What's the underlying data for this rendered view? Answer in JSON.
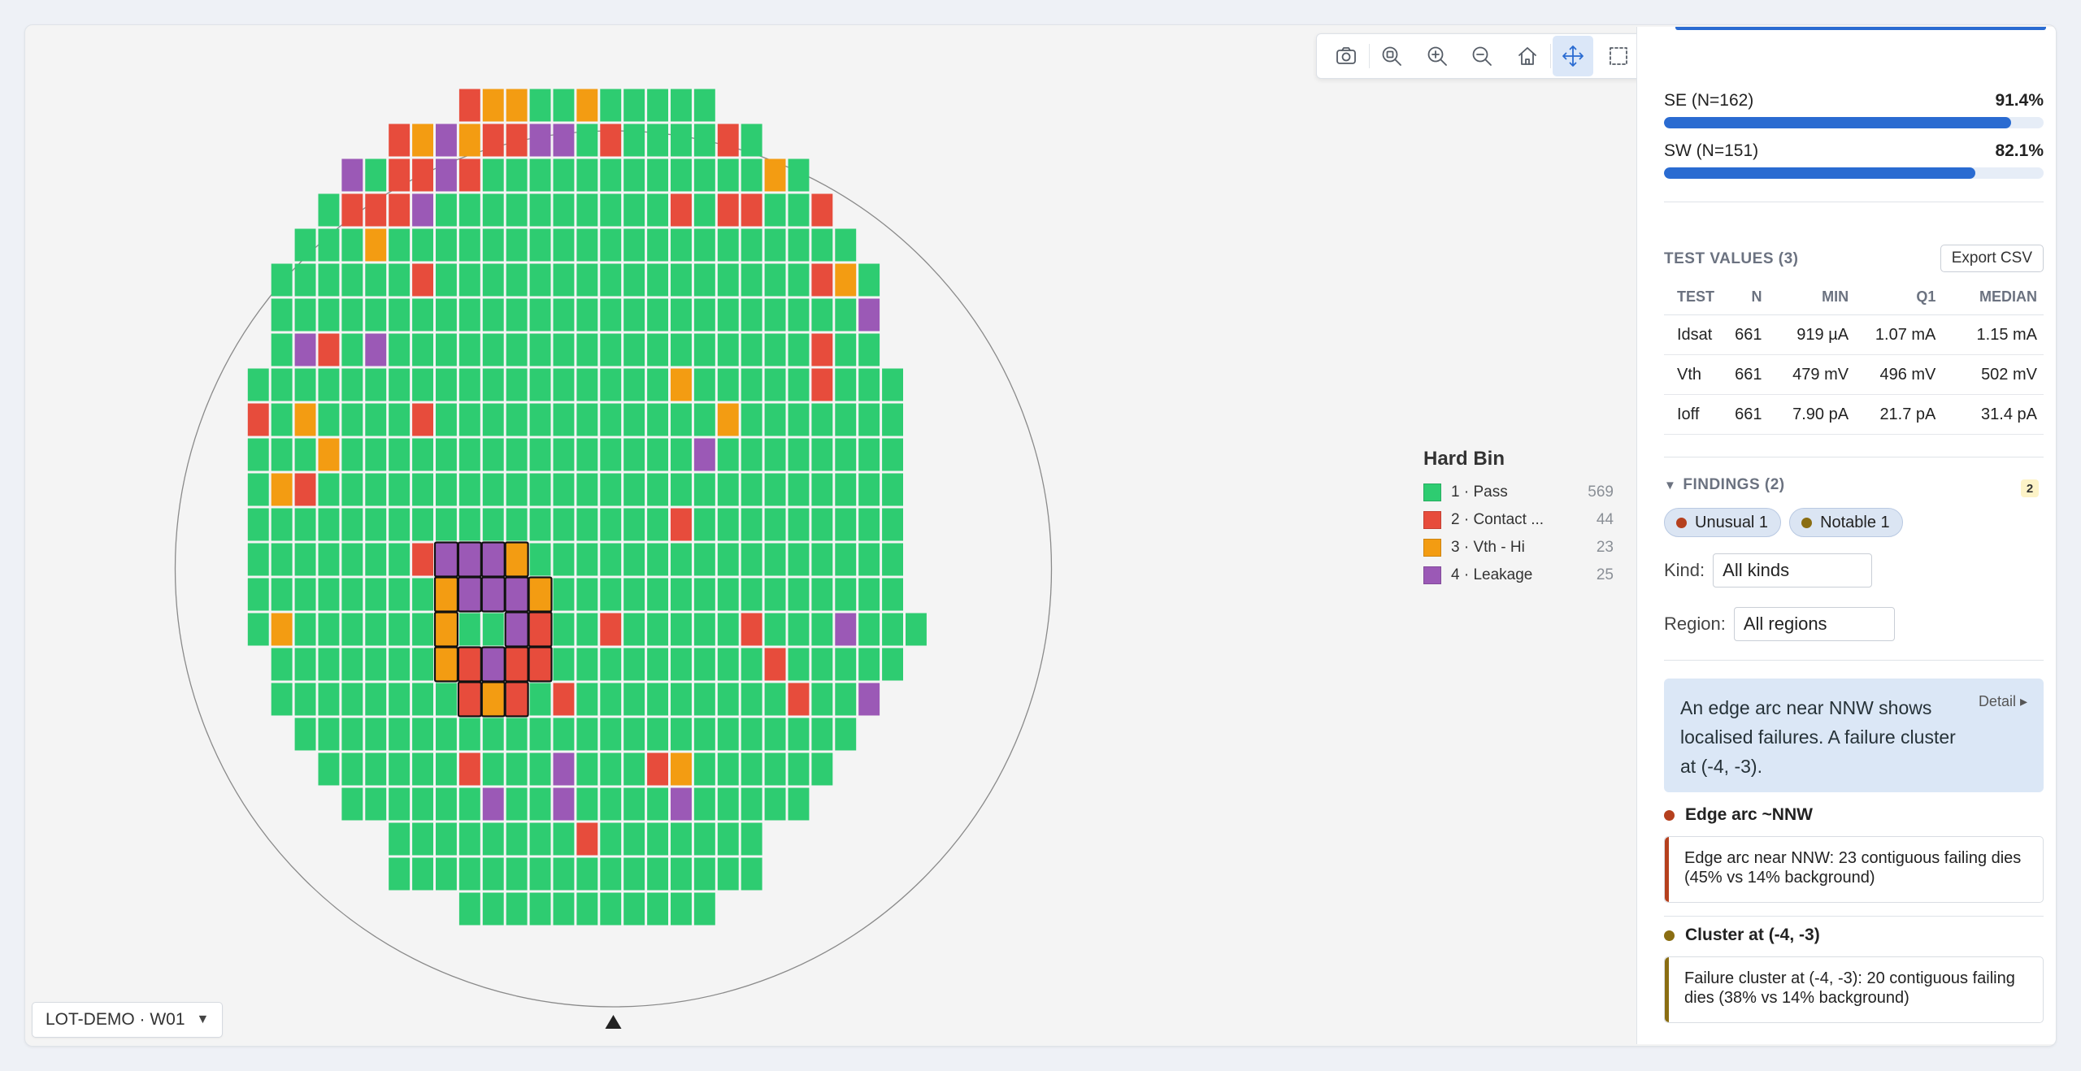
{
  "toolbar": {
    "items": [
      {
        "name": "camera-icon",
        "active": false
      },
      {
        "name": "zoom-fit-icon",
        "active": false
      },
      {
        "name": "zoom-in-icon",
        "active": false
      },
      {
        "name": "zoom-out-icon",
        "active": false
      },
      {
        "name": "home-icon",
        "active": false
      },
      {
        "name": "pan-move-icon",
        "active": true
      },
      {
        "name": "box-select-icon",
        "active": false
      },
      {
        "name": "layers-icon",
        "active": false
      },
      {
        "name": "brush-icon",
        "active": false
      },
      {
        "name": "eye-icon",
        "active": false
      },
      {
        "name": "list-view-icon",
        "active": false
      },
      {
        "name": "compass-icon",
        "active": false
      },
      {
        "name": "clipboard-icon",
        "active": true
      },
      {
        "name": "expand-icon",
        "active": false
      },
      {
        "name": "help-icon",
        "active": false
      }
    ]
  },
  "wafer": {
    "legend": {
      "title": "Hard Bin",
      "items": [
        {
          "label": "1 · Pass",
          "count": "569",
          "color": "#2ecc71"
        },
        {
          "label": "2 · Contact ...",
          "count": "44",
          "color": "#e74c3c"
        },
        {
          "label": "3 · Vth - Hi",
          "count": "23",
          "color": "#f39c12"
        },
        {
          "label": "4 · Leakage",
          "count": "25",
          "color": "#9b59b6"
        }
      ]
    },
    "grid": {
      "cols": 35,
      "rows": 24,
      "row_starts": [
        11,
        8,
        6,
        5,
        4,
        3,
        3,
        3,
        2,
        2,
        2,
        2,
        2,
        2,
        2,
        2,
        3,
        3,
        4,
        5,
        6,
        8,
        8,
        11
      ],
      "row_ends": [
        21,
        23,
        25,
        26,
        27,
        28,
        28,
        28,
        29,
        29,
        29,
        29,
        29,
        29,
        29,
        30,
        29,
        28,
        27,
        26,
        25,
        23,
        23,
        21
      ],
      "defects": [
        [
          0,
          11,
          2
        ],
        [
          0,
          12,
          3
        ],
        [
          0,
          13,
          3
        ],
        [
          0,
          16,
          3
        ],
        [
          1,
          8,
          2
        ],
        [
          1,
          9,
          3
        ],
        [
          1,
          10,
          4
        ],
        [
          1,
          11,
          3
        ],
        [
          1,
          12,
          2
        ],
        [
          1,
          13,
          2
        ],
        [
          1,
          14,
          4
        ],
        [
          1,
          15,
          4
        ],
        [
          1,
          17,
          2
        ],
        [
          1,
          22,
          2
        ],
        [
          1,
          24,
          2
        ],
        [
          2,
          6,
          4
        ],
        [
          2,
          8,
          2
        ],
        [
          2,
          9,
          2
        ],
        [
          2,
          10,
          4
        ],
        [
          2,
          11,
          2
        ],
        [
          2,
          24,
          3
        ],
        [
          3,
          6,
          2
        ],
        [
          3,
          7,
          2
        ],
        [
          3,
          8,
          2
        ],
        [
          3,
          9,
          4
        ],
        [
          3,
          20,
          2
        ],
        [
          3,
          22,
          2
        ],
        [
          3,
          23,
          2
        ],
        [
          3,
          26,
          2
        ],
        [
          4,
          7,
          3
        ],
        [
          5,
          9,
          2
        ],
        [
          5,
          26,
          2
        ],
        [
          5,
          27,
          3
        ],
        [
          6,
          28,
          4
        ],
        [
          7,
          4,
          4
        ],
        [
          7,
          5,
          2
        ],
        [
          7,
          7,
          4
        ],
        [
          7,
          26,
          2
        ],
        [
          7,
          29,
          2
        ],
        [
          8,
          20,
          3
        ],
        [
          8,
          26,
          2
        ],
        [
          9,
          2,
          2
        ],
        [
          9,
          4,
          3
        ],
        [
          9,
          9,
          2
        ],
        [
          9,
          22,
          3
        ],
        [
          9,
          31,
          3
        ],
        [
          10,
          5,
          3
        ],
        [
          10,
          21,
          4
        ],
        [
          11,
          3,
          3
        ],
        [
          11,
          4,
          2
        ],
        [
          11,
          32,
          3
        ],
        [
          12,
          20,
          2
        ],
        [
          13,
          9,
          2
        ],
        [
          13,
          30,
          2
        ],
        [
          13,
          32,
          2
        ],
        [
          14,
          31,
          2
        ],
        [
          14,
          33,
          2
        ],
        [
          15,
          3,
          3
        ],
        [
          15,
          17,
          2
        ],
        [
          15,
          23,
          2
        ],
        [
          15,
          27,
          4
        ],
        [
          16,
          24,
          2
        ],
        [
          17,
          15,
          2
        ],
        [
          17,
          25,
          2
        ],
        [
          17,
          28,
          4
        ],
        [
          18,
          28,
          4
        ],
        [
          19,
          11,
          2
        ],
        [
          19,
          15,
          4
        ],
        [
          19,
          19,
          2
        ],
        [
          19,
          20,
          3
        ],
        [
          20,
          12,
          4
        ],
        [
          20,
          15,
          4
        ],
        [
          20,
          20,
          4
        ],
        [
          21,
          16,
          2
        ]
      ],
      "cluster": [
        [
          13,
          10,
          4
        ],
        [
          13,
          11,
          4
        ],
        [
          13,
          12,
          4
        ],
        [
          13,
          13,
          3
        ],
        [
          14,
          10,
          3
        ],
        [
          14,
          11,
          4
        ],
        [
          14,
          12,
          4
        ],
        [
          14,
          13,
          4
        ],
        [
          14,
          14,
          3
        ],
        [
          15,
          10,
          3
        ],
        [
          15,
          13,
          4
        ],
        [
          15,
          14,
          2
        ],
        [
          16,
          10,
          3
        ],
        [
          16,
          11,
          2
        ],
        [
          16,
          12,
          4
        ],
        [
          16,
          13,
          2
        ],
        [
          16,
          14,
          2
        ],
        [
          17,
          11,
          2
        ],
        [
          17,
          12,
          3
        ],
        [
          17,
          13,
          2
        ]
      ]
    },
    "lot_selector": "LOT-DEMO · W01"
  },
  "panel": {
    "regions": [
      {
        "label": "SE (N=162)",
        "pct_text": "91.4%",
        "value": 0.914
      },
      {
        "label": "SW (N=151)",
        "pct_text": "82.1%",
        "value": 0.821
      }
    ],
    "test_values": {
      "title": "TEST VALUES (3)",
      "export_label": "Export CSV",
      "columns": [
        "TEST",
        "N",
        "MIN",
        "Q1",
        "MEDIAN"
      ],
      "rows": [
        [
          "Idsat",
          "661",
          "919 µA",
          "1.07 mA",
          "1.15 mA"
        ],
        [
          "Vth",
          "661",
          "479 mV",
          "496 mV",
          "502 mV"
        ],
        [
          "Ioff",
          "661",
          "7.90 pA",
          "21.7 pA",
          "31.4 pA"
        ]
      ]
    },
    "findings": {
      "title": "FINDINGS (2)",
      "count": "2",
      "chips": [
        {
          "label": "Unusual 1",
          "color": "#b5401e"
        },
        {
          "label": "Notable 1",
          "color": "#8a6d12"
        }
      ],
      "kind_label": "Kind:",
      "kind_value": "All kinds",
      "region_label": "Region:",
      "region_value": "All regions",
      "summary": "An edge arc near NNW shows localised failures. A failure cluster at (-4, -3).",
      "detail_label": "Detail ▸",
      "items": [
        {
          "title": "Edge arc ~NNW",
          "text": "Edge arc near NNW: 23 contiguous failing dies (45% vs 14% background)",
          "color": "#b5401e"
        },
        {
          "title": "Cluster at (-4, -3)",
          "text": "Failure cluster at (-4, -3): 20 contiguous failing dies (38% vs 14% background)",
          "color": "#8a6d12"
        }
      ]
    }
  }
}
